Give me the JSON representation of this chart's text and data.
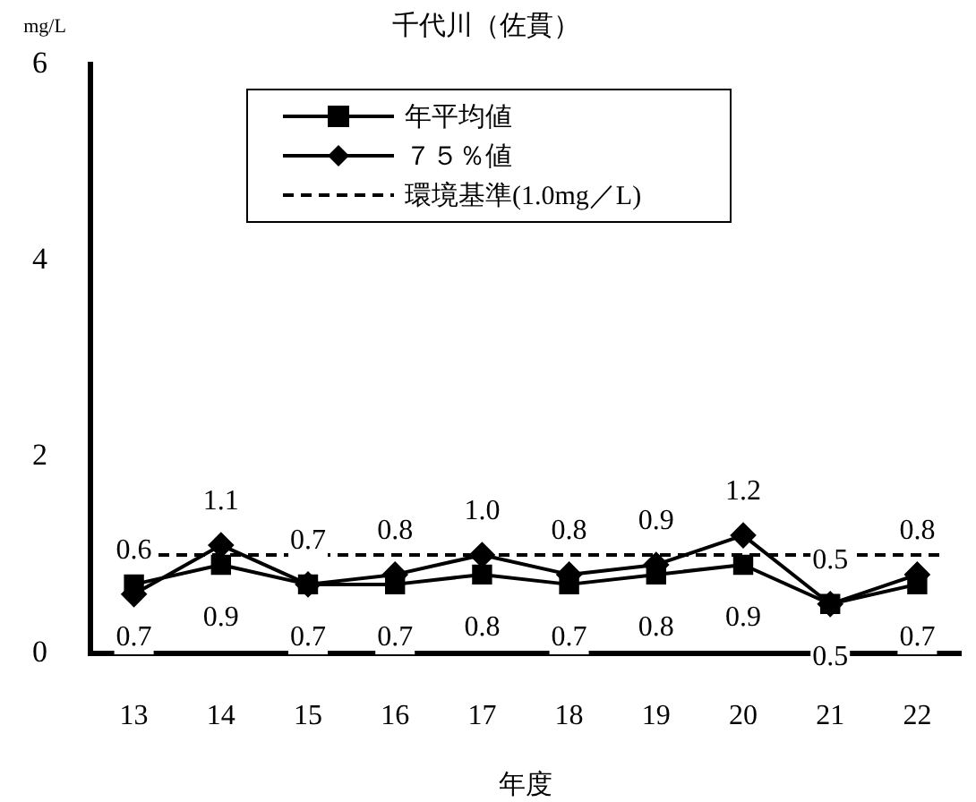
{
  "chart_data": {
    "type": "line",
    "title": "千代川（佐貫）",
    "xlabel": "年度",
    "ylabel": "mg/L",
    "categories": [
      "13",
      "14",
      "15",
      "16",
      "17",
      "18",
      "19",
      "20",
      "21",
      "22"
    ],
    "series": [
      {
        "name": "年平均値",
        "color": "#000000",
        "marker": "square",
        "values": [
          0.7,
          0.9,
          0.7,
          0.7,
          0.8,
          0.7,
          0.8,
          0.9,
          0.5,
          0.7
        ],
        "value_labels": [
          "0.7",
          "0.9",
          "0.7",
          "0.7",
          "0.8",
          "0.7",
          "0.8",
          "0.9",
          "0.5",
          "0.7"
        ]
      },
      {
        "name": "７５％値",
        "color": "#000000",
        "marker": "diamond",
        "values": [
          0.6,
          1.1,
          0.7,
          0.8,
          1.0,
          0.8,
          0.9,
          1.2,
          0.5,
          0.8
        ],
        "value_labels": [
          "0.6",
          "1.1",
          "0.7",
          "0.8",
          "1.0",
          "0.8",
          "0.9",
          "1.2",
          "0.5",
          "0.8"
        ]
      }
    ],
    "ref_lines": [
      {
        "axis": "y",
        "value": 1.0,
        "label": "環境基準(1.0mg／L)",
        "color": "#000000",
        "line_style": "dashed"
      }
    ],
    "ylim": [
      0,
      6
    ],
    "yticks": [
      0,
      2,
      4,
      6
    ],
    "grid": false,
    "legend": "top",
    "line_style": "solid"
  }
}
